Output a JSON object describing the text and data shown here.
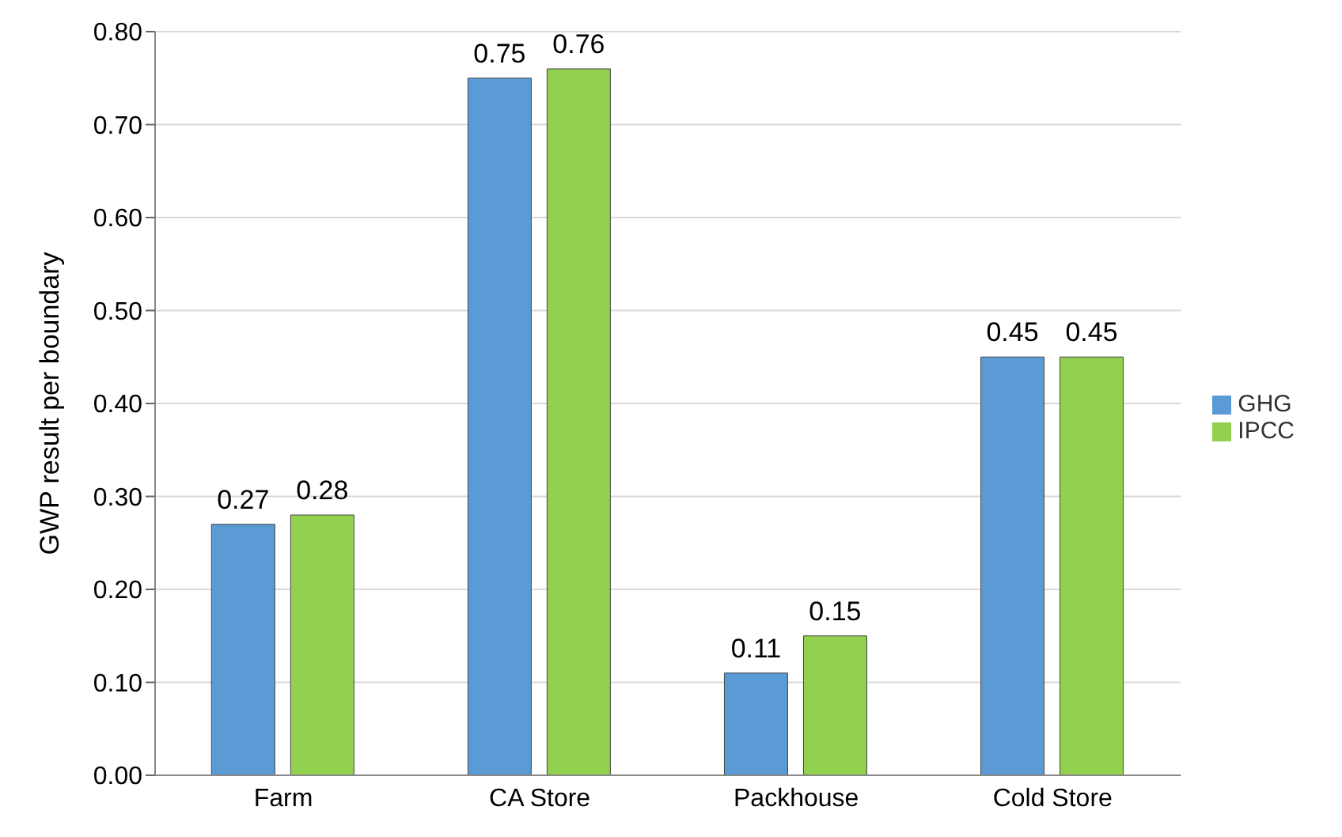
{
  "chart_data": {
    "type": "bar",
    "ylabel": "GWP result per boundary",
    "categories": [
      "Farm",
      "CA Store",
      "Packhouse",
      "Cold Store"
    ],
    "series": [
      {
        "name": "GHG",
        "color": "#5b9bd5",
        "values": [
          0.27,
          0.75,
          0.11,
          0.45
        ]
      },
      {
        "name": "IPCC",
        "color": "#92d050",
        "values": [
          0.28,
          0.76,
          0.15,
          0.45
        ]
      }
    ],
    "ylim": [
      0,
      0.8
    ],
    "yticks": [
      {
        "value": 0,
        "label": "0.00"
      },
      {
        "value": 0.1,
        "label": "0.10"
      },
      {
        "value": 0.2,
        "label": "0.20"
      },
      {
        "value": 0.3,
        "label": "0.30"
      },
      {
        "value": 0.4,
        "label": "0.40"
      },
      {
        "value": 0.5,
        "label": "0.50"
      },
      {
        "value": 0.6,
        "label": "0.60"
      },
      {
        "value": 0.7,
        "label": "0.70"
      },
      {
        "value": 0.8,
        "label": "0.80"
      }
    ],
    "grid": "y",
    "legend": "right",
    "data_labels": true
  }
}
